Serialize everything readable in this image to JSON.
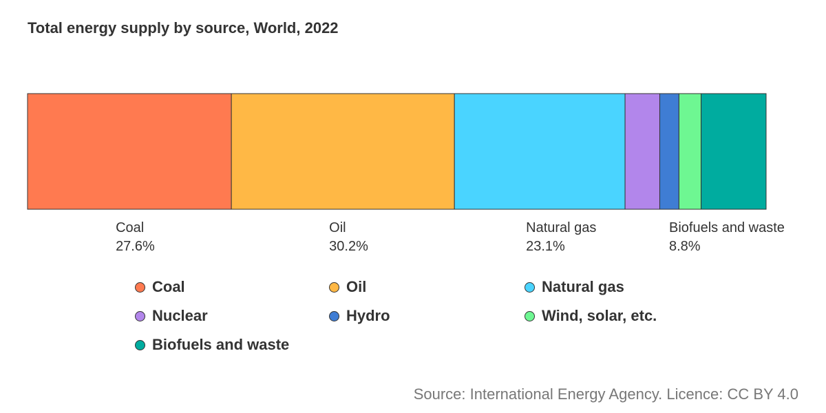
{
  "title": "Total energy supply by source, World, 2022",
  "source": "Source: International Energy Agency. Licence: CC BY 4.0",
  "colors": {
    "Coal": "#ff7a50",
    "Oil": "#ffb845",
    "Natural gas": "#4ad4ff",
    "Nuclear": "#b286eb",
    "Hydro": "#3f7dd4",
    "Wind, solar, etc.": "#6ef792",
    "Biofuels and waste": "#00ac9f"
  },
  "chart_data": {
    "type": "bar",
    "orientation": "horizontal-stacked-100",
    "title": "Total energy supply by source, World, 2022",
    "categories": [
      "World"
    ],
    "unit": "%",
    "series": [
      {
        "name": "Coal",
        "value": 27.6,
        "label": "27.6%",
        "show_label": true
      },
      {
        "name": "Oil",
        "value": 30.2,
        "label": "30.2%",
        "show_label": true
      },
      {
        "name": "Natural gas",
        "value": 23.1,
        "label": "23.1%",
        "show_label": true
      },
      {
        "name": "Nuclear",
        "value": 4.7,
        "show_label": false
      },
      {
        "name": "Hydro",
        "value": 2.6,
        "show_label": false
      },
      {
        "name": "Wind, solar, etc.",
        "value": 3.0,
        "show_label": false
      },
      {
        "name": "Biofuels and waste",
        "value": 8.8,
        "label": "8.8%",
        "show_label": true
      }
    ],
    "legend": [
      "Coal",
      "Oil",
      "Natural gas",
      "Nuclear",
      "Hydro",
      "Wind, solar, etc.",
      "Biofuels and waste"
    ],
    "legend_placement": "bottom",
    "grid": false
  }
}
